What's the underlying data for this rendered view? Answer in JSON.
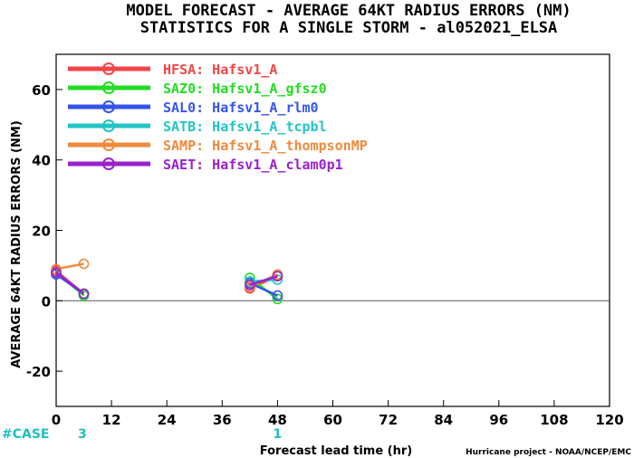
{
  "chart_data": {
    "type": "line",
    "title": "MODEL FORECAST - AVERAGE 64KT RADIUS ERRORS (NM)",
    "subtitle": "STATISTICS FOR A SINGLE STORM - al052021_ELSA",
    "xlabel": "Forecast lead time (hr)",
    "ylabel": "AVERAGE 64KT RADIUS ERRORS (NM)",
    "xlim": [
      0,
      120
    ],
    "ylim": [
      -30,
      70
    ],
    "xticks": [
      0,
      12,
      24,
      36,
      48,
      60,
      72,
      84,
      96,
      108,
      120
    ],
    "yticks": [
      -20,
      0,
      20,
      40,
      60
    ],
    "grid": false,
    "legend_position": "top-left",
    "zero_line": true,
    "cases_label": "#CASE",
    "cases": [
      {
        "x": 0,
        "n": "3"
      },
      {
        "x": 48,
        "n": "1"
      }
    ],
    "credit": "Hurricane project - NOAA/NCEP/EMC",
    "series": [
      {
        "name": "HFSA:  Hafsv1_A",
        "color": "#f24545",
        "segments": [
          [
            [
              0,
              8.5
            ],
            [
              6,
              2
            ]
          ],
          [
            [
              42,
              3.5
            ],
            [
              48,
              7
            ]
          ]
        ]
      },
      {
        "name": "SAZ0:  Hafsv1_A_gfsz0",
        "color": "#22dd22",
        "segments": [
          [
            [
              0,
              8
            ],
            [
              6,
              1.5
            ]
          ],
          [
            [
              42,
              6.5
            ],
            [
              48,
              0.5
            ]
          ]
        ]
      },
      {
        "name": "SAL0:  Hafsv1_A_rlm0",
        "color": "#3355ee",
        "segments": [
          [
            [
              0,
              7.5
            ],
            [
              6,
              2
            ]
          ],
          [
            [
              42,
              5
            ],
            [
              48,
              1.5
            ]
          ]
        ]
      },
      {
        "name": "SATB:  Hafsv1_A_tcpbl",
        "color": "#22c4c4",
        "segments": [
          [
            [
              0,
              8
            ],
            [
              6,
              2
            ]
          ],
          [
            [
              42,
              5.5
            ],
            [
              48,
              6
            ]
          ]
        ]
      },
      {
        "name": "SAMP:  Hafsv1_A_thompsonMP",
        "color": "#ef8a3c",
        "segments": [
          [
            [
              0,
              9
            ],
            [
              6,
              10.5
            ]
          ],
          [
            [
              42,
              4
            ],
            [
              48,
              7.5
            ]
          ]
        ]
      },
      {
        "name": "SAET:  Hafsv1_A_clam0p1",
        "color": "#9922cc",
        "segments": [
          [
            [
              0,
              8
            ],
            [
              6,
              2
            ]
          ],
          [
            [
              42,
              4.5
            ],
            [
              48,
              7
            ]
          ]
        ]
      }
    ]
  }
}
